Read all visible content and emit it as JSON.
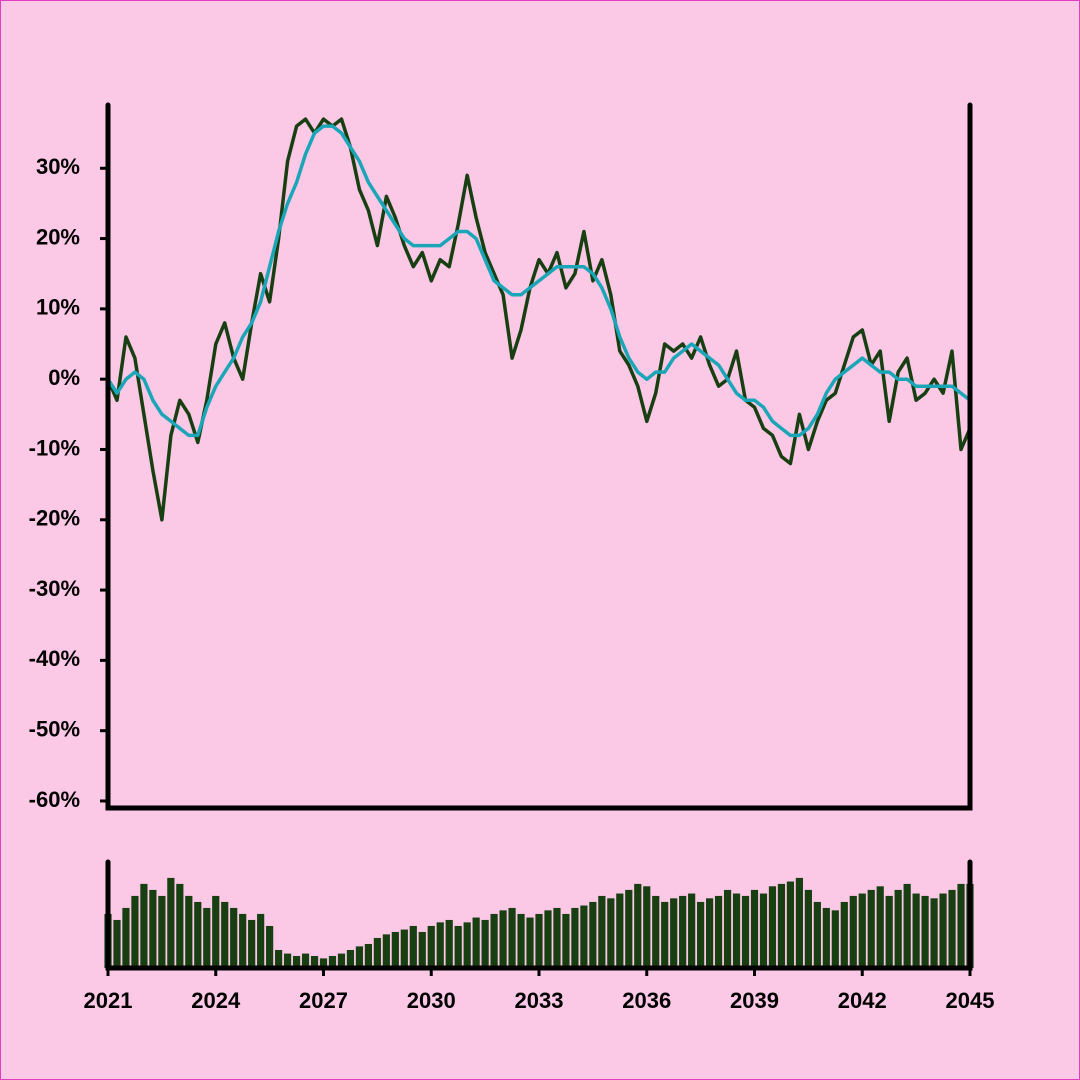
{
  "chart_data": {
    "type": "line",
    "xlim": [
      2021,
      2045
    ],
    "xticks": [
      2021,
      2024,
      2027,
      2030,
      2033,
      2036,
      2039,
      2042,
      2045
    ],
    "ylim": [
      -61,
      39
    ],
    "yticks": [
      {
        "value": -60,
        "label": "-60%"
      },
      {
        "value": -50,
        "label": "-50%"
      },
      {
        "value": -40,
        "label": "-40%"
      },
      {
        "value": -30,
        "label": "-30%"
      },
      {
        "value": -20,
        "label": "-20%"
      },
      {
        "value": -10,
        "label": "-10%"
      },
      {
        "value": 0,
        "label": "0%"
      },
      {
        "value": 10,
        "label": "10%"
      },
      {
        "value": 20,
        "label": "20%"
      },
      {
        "value": 30,
        "label": "30%"
      }
    ],
    "x": [
      2021,
      2021.25,
      2021.5,
      2021.75,
      2022,
      2022.25,
      2022.5,
      2022.75,
      2023,
      2023.25,
      2023.5,
      2023.75,
      2024,
      2024.25,
      2024.5,
      2024.75,
      2025,
      2025.25,
      2025.5,
      2025.75,
      2026,
      2026.25,
      2026.5,
      2026.75,
      2027,
      2027.25,
      2027.5,
      2027.75,
      2028,
      2028.25,
      2028.5,
      2028.75,
      2029,
      2029.25,
      2029.5,
      2029.75,
      2030,
      2030.25,
      2030.5,
      2030.75,
      2031,
      2031.25,
      2031.5,
      2031.75,
      2032,
      2032.25,
      2032.5,
      2032.75,
      2033,
      2033.25,
      2033.5,
      2033.75,
      2034,
      2034.25,
      2034.5,
      2034.75,
      2035,
      2035.25,
      2035.5,
      2035.75,
      2036,
      2036.25,
      2036.5,
      2036.75,
      2037,
      2037.25,
      2037.5,
      2037.75,
      2038,
      2038.25,
      2038.5,
      2038.75,
      2039,
      2039.25,
      2039.5,
      2039.75,
      2040,
      2040.25,
      2040.5,
      2040.75,
      2041,
      2041.25,
      2041.5,
      2041.75,
      2042,
      2042.25,
      2042.5,
      2042.75,
      2043,
      2043.25,
      2043.5,
      2043.75,
      2044,
      2044.25,
      2044.5,
      2044.75,
      2045
    ],
    "series": [
      {
        "color": "#173f12",
        "values": [
          0,
          -3,
          6,
          3,
          -5,
          -13,
          -20,
          -8,
          -3,
          -5,
          -9,
          -3,
          5,
          8,
          3,
          0,
          8,
          15,
          11,
          20,
          31,
          36,
          37,
          35,
          37,
          36,
          37,
          33,
          27,
          24,
          19,
          26,
          23,
          19,
          16,
          18,
          14,
          17,
          16,
          22,
          29,
          23,
          18,
          15,
          12,
          3,
          7,
          13,
          17,
          15,
          18,
          13,
          15,
          21,
          14,
          17,
          12,
          4,
          2,
          -1,
          -6,
          -2,
          5,
          4,
          5,
          3,
          6,
          2,
          -1,
          0,
          4,
          -3,
          -4,
          -7,
          -8,
          -11,
          -12,
          -5,
          -10,
          -6,
          -3,
          -2,
          2,
          6,
          7,
          2,
          4,
          -6,
          1,
          3,
          -3,
          -2,
          0,
          -2,
          4,
          -10,
          -7
        ]
      },
      {
        "color": "#1ba6b8",
        "values": [
          0,
          -2,
          0,
          1,
          0,
          -3,
          -5,
          -6,
          -7,
          -8,
          -8,
          -4,
          -1,
          1,
          3,
          6,
          8,
          11,
          16,
          21,
          25,
          28,
          32,
          35,
          36,
          36,
          35,
          33,
          31,
          28,
          26,
          24,
          22,
          20,
          19,
          19,
          19,
          19,
          20,
          21,
          21,
          20,
          17,
          14,
          13,
          12,
          12,
          13,
          14,
          15,
          16,
          16,
          16,
          16,
          15,
          13,
          10,
          6,
          3,
          1,
          0,
          1,
          1,
          3,
          4,
          5,
          4,
          3,
          2,
          0,
          -2,
          -3,
          -3,
          -4,
          -6,
          -7,
          -8,
          -8,
          -7,
          -5,
          -2,
          0,
          1,
          2,
          3,
          2,
          1,
          1,
          0,
          0,
          -1,
          -1,
          -1,
          -1,
          -1,
          -2,
          -3
        ]
      }
    ],
    "volume": {
      "color": "#173f12",
      "values": [
        45,
        40,
        50,
        60,
        70,
        65,
        60,
        75,
        70,
        60,
        55,
        50,
        60,
        55,
        50,
        45,
        40,
        45,
        35,
        15,
        12,
        10,
        12,
        10,
        8,
        10,
        12,
        15,
        18,
        20,
        25,
        28,
        30,
        32,
        35,
        30,
        35,
        38,
        40,
        35,
        38,
        42,
        40,
        45,
        48,
        50,
        45,
        42,
        45,
        48,
        50,
        45,
        50,
        52,
        55,
        60,
        58,
        62,
        65,
        70,
        68,
        60,
        55,
        58,
        60,
        62,
        55,
        58,
        60,
        65,
        62,
        60,
        65,
        62,
        68,
        70,
        72,
        75,
        65,
        55,
        50,
        48,
        55,
        60,
        62,
        65,
        68,
        60,
        65,
        70,
        62,
        60,
        58,
        62,
        65,
        70,
        70
      ]
    }
  }
}
